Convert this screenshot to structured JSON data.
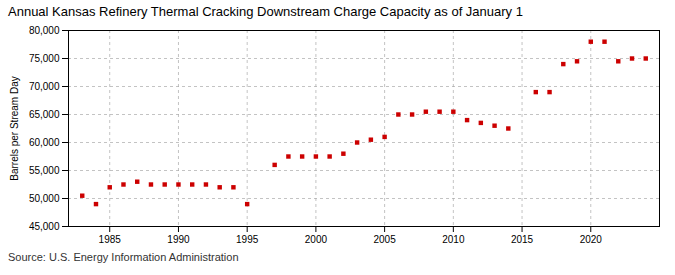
{
  "chart_data": {
    "type": "scatter",
    "title": "Annual Kansas Refinery Thermal Cracking Downstream Charge Capacity as of January 1",
    "ylabel": "Barrels per Stream Day",
    "source": "Source: U.S. Energy Information Administration",
    "color": "#cc0000",
    "marker": "square",
    "x": [
      1983,
      1984,
      1985,
      1986,
      1987,
      1988,
      1989,
      1990,
      1991,
      1992,
      1993,
      1994,
      1995,
      1997,
      1998,
      1999,
      2000,
      2001,
      2002,
      2003,
      2004,
      2005,
      2006,
      2007,
      2008,
      2009,
      2010,
      2011,
      2012,
      2013,
      2014,
      2016,
      2017,
      2018,
      2019,
      2020,
      2021,
      2022,
      2023,
      2024
    ],
    "values": [
      50500,
      49000,
      52000,
      52500,
      53000,
      52500,
      52500,
      52500,
      52500,
      52500,
      52000,
      52000,
      49000,
      56000,
      57500,
      57500,
      57500,
      57500,
      58000,
      60000,
      60500,
      61000,
      65000,
      65000,
      65500,
      65500,
      65500,
      64000,
      63500,
      63000,
      62500,
      69000,
      69000,
      74000,
      74500,
      78000,
      78000,
      74500,
      75000,
      75000
    ],
    "xlim": [
      1982,
      2025
    ],
    "xticks": [
      1985,
      1990,
      1995,
      2000,
      2005,
      2010,
      2015,
      2020
    ],
    "ylim": [
      45000,
      80000
    ],
    "yticks": [
      {
        "value": 45000,
        "label": "45,000"
      },
      {
        "value": 50000,
        "label": "50,000"
      },
      {
        "value": 55000,
        "label": "55,000"
      },
      {
        "value": 60000,
        "label": "60,000"
      },
      {
        "value": 65000,
        "label": "65,000"
      },
      {
        "value": 70000,
        "label": "70,000"
      },
      {
        "value": 75000,
        "label": "75,000"
      },
      {
        "value": 80000,
        "label": "80,000"
      }
    ],
    "grid": true
  }
}
